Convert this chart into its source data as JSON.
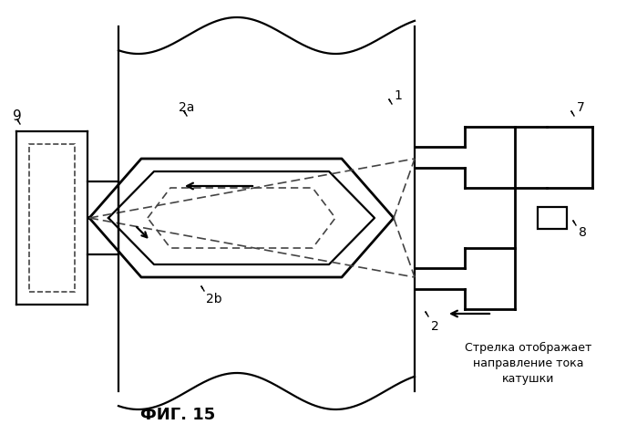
{
  "title": "ФИГ. 15",
  "label_1": "1",
  "label_2": "2",
  "label_2a": "2a",
  "label_2b": "2b",
  "label_7": "7",
  "label_8": "8",
  "label_9": "9",
  "annotation": "Стрелка отображает\nнаправление тока\nкатушки",
  "bg_color": "#ffffff",
  "line_color": "#000000",
  "dashed_color": "#444444"
}
